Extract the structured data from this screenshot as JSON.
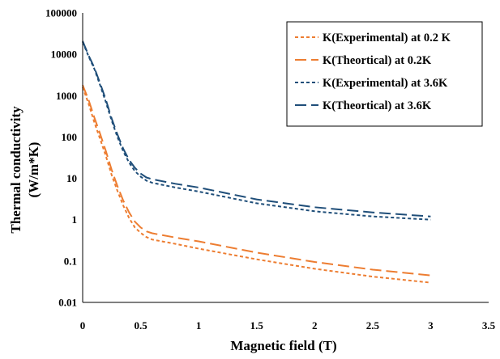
{
  "chart_data": {
    "type": "line",
    "xlabel": "Magnetic field (T)",
    "ylabel": "Thermal conductivity",
    "ylabel_unit": "(W/m*K)",
    "xlim": [
      0,
      3.5
    ],
    "ylim": [
      0.01,
      100000
    ],
    "yscale": "log",
    "x_ticks": [
      "0",
      "0.5",
      "1",
      "1.5",
      "2",
      "2.5",
      "3",
      "3.5"
    ],
    "y_ticks": [
      "0.01",
      "0.1",
      "1",
      "10",
      "100",
      "1000",
      "10000",
      "100000"
    ],
    "grid": false,
    "legend_position": "top-right",
    "series": [
      {
        "name": "K(Experimental) at 0.2 K",
        "color": "#ED7D31",
        "dash": "short",
        "x": [
          0,
          0.05,
          0.1,
          0.15,
          0.2,
          0.25,
          0.3,
          0.35,
          0.4,
          0.45,
          0.5,
          0.55,
          0.6,
          0.8,
          1.0,
          1.5,
          2.0,
          2.5,
          3.0
        ],
        "y": [
          1600,
          650,
          230,
          90,
          35,
          12,
          5,
          2.2,
          1.1,
          0.65,
          0.48,
          0.38,
          0.33,
          0.26,
          0.2,
          0.11,
          0.065,
          0.042,
          0.03
        ]
      },
      {
        "name": "K(Theortical) at 0.2K",
        "color": "#ED7D31",
        "dash": "long",
        "x": [
          0,
          0.05,
          0.1,
          0.15,
          0.2,
          0.25,
          0.3,
          0.35,
          0.4,
          0.45,
          0.5,
          0.55,
          0.6,
          0.8,
          1.0,
          1.5,
          2.0,
          2.5,
          3.0
        ],
        "y": [
          1800,
          800,
          300,
          120,
          46,
          16,
          6.5,
          2.9,
          1.5,
          0.9,
          0.65,
          0.52,
          0.47,
          0.37,
          0.3,
          0.16,
          0.095,
          0.062,
          0.045
        ]
      },
      {
        "name": "K(Experimental) at 3.6K",
        "color": "#1F4E79",
        "dash": "short",
        "x": [
          0,
          0.05,
          0.1,
          0.15,
          0.2,
          0.25,
          0.3,
          0.35,
          0.4,
          0.45,
          0.5,
          0.55,
          0.6,
          0.8,
          1.0,
          1.5,
          2.0,
          2.5,
          3.0
        ],
        "y": [
          20000,
          9000,
          4500,
          1800,
          700,
          250,
          100,
          45,
          24,
          15,
          11,
          8.8,
          7.8,
          6,
          4.8,
          2.5,
          1.6,
          1.2,
          1.0
        ]
      },
      {
        "name": "K(Theortical) at 3.6K",
        "color": "#1F4E79",
        "dash": "long",
        "x": [
          0,
          0.05,
          0.1,
          0.15,
          0.2,
          0.25,
          0.3,
          0.35,
          0.4,
          0.45,
          0.5,
          0.55,
          0.6,
          0.8,
          1.0,
          1.5,
          2.0,
          2.5,
          3.0
        ],
        "y": [
          21000,
          9500,
          4800,
          2000,
          800,
          280,
          115,
          52,
          28,
          18,
          13,
          10.5,
          9.5,
          7.4,
          6,
          3.1,
          2.0,
          1.5,
          1.2
        ]
      }
    ]
  }
}
